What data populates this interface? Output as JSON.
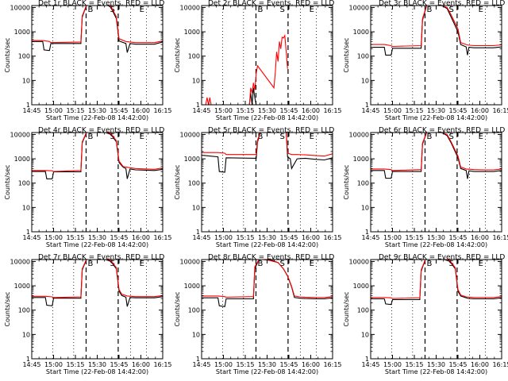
{
  "colors": {
    "events": "#000000",
    "lld": "#ff0000",
    "background": "#ffffff",
    "axes": "#000000"
  },
  "axis": {
    "xlabel": "Start Time (22-Feb-08 14:42:00)",
    "ylabel": "Counts/sec",
    "x_tick_labels": [
      "14:45",
      "15:00",
      "15:15",
      "15:30",
      "15:45",
      "16:00",
      "16:15"
    ],
    "y_tick_labels": [
      "1",
      "10",
      "100",
      "1000",
      "10000"
    ]
  },
  "chart_data": [
    {
      "type": "line",
      "title": "Det 1r BLACK = Events, RED = LLD",
      "markers": [
        "B",
        "S",
        "E"
      ],
      "xlabel": "Start Time (22-Feb-08 14:42:00)",
      "ylabel": "Counts/sec",
      "xlim": [
        0,
        96
      ],
      "ylim": [
        1,
        12000
      ],
      "yscale": "log",
      "series": [
        {
          "name": "Events",
          "color": "#000000",
          "x": [
            0,
            8,
            9,
            13,
            14,
            36,
            37,
            40,
            42,
            45,
            50,
            56,
            58,
            62,
            64,
            69,
            70,
            72,
            76,
            84,
            90,
            96
          ],
          "y": [
            400,
            400,
            180,
            170,
            330,
            330,
            4000,
            12000,
            12000,
            12000,
            12000,
            12000,
            10000,
            3500,
            420,
            330,
            140,
            330,
            310,
            310,
            310,
            380
          ]
        },
        {
          "name": "LLD",
          "color": "#ff0000",
          "x": [
            0,
            8,
            13,
            14,
            36,
            37,
            40,
            42,
            45,
            50,
            56,
            58,
            62,
            64,
            69,
            72,
            76,
            84,
            90,
            96
          ],
          "y": [
            440,
            440,
            400,
            360,
            380,
            4500,
            12000,
            12000,
            12000,
            12000,
            12000,
            11000,
            4200,
            520,
            400,
            380,
            360,
            360,
            360,
            420
          ]
        }
      ]
    },
    {
      "type": "line",
      "title": "Det 2r BLACK = Events, RED = LLD",
      "markers": [
        "B",
        "S",
        "E"
      ],
      "xlabel": "Start Time (22-Feb-08 14:42:00)",
      "ylabel": "Counts/sec",
      "xlim": [
        0,
        96
      ],
      "ylim": [
        1,
        12000
      ],
      "yscale": "log",
      "series": [
        {
          "name": "Events",
          "color": "#000000",
          "x": [
            35,
            36,
            37,
            38,
            39,
            40
          ],
          "y": [
            1,
            3,
            1,
            5,
            2,
            1
          ]
        },
        {
          "name": "LLD",
          "color": "#ff0000",
          "x": [
            3,
            4,
            5,
            6,
            7,
            8,
            35,
            36,
            37,
            38,
            39,
            40,
            41,
            53,
            54,
            55,
            56,
            57,
            58,
            59,
            60,
            61,
            62,
            63
          ],
          "y": [
            1,
            2,
            1,
            2,
            1,
            1,
            1,
            5,
            3,
            8,
            4,
            20,
            40,
            5,
            20,
            150,
            60,
            400,
            200,
            600,
            550,
            700,
            150,
            30
          ]
        }
      ]
    },
    {
      "type": "line",
      "title": "Det 3r BLACK = Events, RED = LLD",
      "markers": [
        "B",
        "S",
        "E"
      ],
      "xlabel": "Start Time (22-Feb-08 14:42:00)",
      "ylabel": "Counts/sec",
      "xlim": [
        0,
        96
      ],
      "ylim": [
        1,
        12000
      ],
      "yscale": "log",
      "series": [
        {
          "name": "Events",
          "color": "#000000",
          "x": [
            0,
            10,
            11,
            15,
            16,
            37,
            38,
            41,
            43,
            48,
            52,
            56,
            59,
            64,
            66,
            70,
            71,
            72,
            76,
            84,
            90,
            96
          ],
          "y": [
            230,
            230,
            110,
            110,
            210,
            210,
            3000,
            12000,
            12000,
            12000,
            12000,
            9000,
            4000,
            1000,
            300,
            240,
            110,
            230,
            220,
            220,
            220,
            240
          ]
        },
        {
          "name": "LLD",
          "color": "#ff0000",
          "x": [
            0,
            10,
            15,
            16,
            37,
            38,
            41,
            43,
            48,
            52,
            56,
            59,
            64,
            66,
            70,
            72,
            76,
            84,
            90,
            96
          ],
          "y": [
            300,
            300,
            270,
            250,
            270,
            3500,
            12000,
            12000,
            12000,
            12000,
            10000,
            5000,
            1300,
            360,
            300,
            280,
            270,
            270,
            270,
            290
          ]
        }
      ]
    },
    {
      "type": "line",
      "title": "Det 4r BLACK = Events, RED = LLD",
      "markers": [
        "B",
        "S",
        "E"
      ],
      "xlabel": "Start Time (22-Feb-08 14:42:00)",
      "ylabel": "Counts/sec",
      "xlim": [
        0,
        96
      ],
      "ylim": [
        1,
        12000
      ],
      "yscale": "log",
      "series": [
        {
          "name": "Events",
          "color": "#000000",
          "x": [
            0,
            10,
            11,
            15,
            16,
            36,
            37,
            40,
            44,
            50,
            54,
            58,
            62,
            64,
            67,
            69,
            70,
            72,
            76,
            84,
            90,
            96
          ],
          "y": [
            300,
            300,
            150,
            150,
            290,
            290,
            4500,
            12000,
            12000,
            12000,
            12000,
            10000,
            5000,
            700,
            450,
            400,
            150,
            380,
            350,
            340,
            330,
            370
          ]
        },
        {
          "name": "LLD",
          "color": "#ff0000",
          "x": [
            0,
            10,
            15,
            16,
            36,
            37,
            40,
            44,
            50,
            54,
            58,
            62,
            64,
            67,
            72,
            76,
            84,
            90,
            96
          ],
          "y": [
            330,
            330,
            320,
            300,
            330,
            5000,
            12000,
            12000,
            12000,
            12000,
            11000,
            5500,
            800,
            480,
            430,
            400,
            380,
            370,
            420
          ]
        }
      ]
    },
    {
      "type": "line",
      "title": "Det 5r BLACK = Events, RED = LLD",
      "markers": [
        "B",
        "S",
        "E"
      ],
      "xlabel": "Start Time (22-Feb-08 14:42:00)",
      "ylabel": "Counts/sec",
      "xlim": [
        0,
        96
      ],
      "ylim": [
        1,
        12000
      ],
      "yscale": "log",
      "series": [
        {
          "name": "Events",
          "color": "#000000",
          "x": [
            0,
            12,
            13,
            17,
            18,
            40,
            41,
            43,
            46,
            52,
            58,
            62,
            63,
            65,
            66,
            70,
            76,
            84,
            90,
            96
          ],
          "y": [
            1400,
            1200,
            300,
            280,
            1100,
            1050,
            5000,
            12000,
            12000,
            12000,
            12000,
            12000,
            1200,
            1000,
            400,
            1000,
            1050,
            950,
            900,
            1100
          ]
        },
        {
          "name": "LLD",
          "color": "#ff0000",
          "x": [
            0,
            12,
            17,
            18,
            40,
            41,
            43,
            46,
            52,
            58,
            62,
            63,
            66,
            70,
            76,
            84,
            90,
            96
          ],
          "y": [
            1800,
            1800,
            1700,
            1500,
            1500,
            6000,
            12000,
            12000,
            12000,
            12000,
            12000,
            1700,
            1500,
            1500,
            1450,
            1350,
            1300,
            1600
          ]
        }
      ]
    },
    {
      "type": "line",
      "title": "Det 6r BLACK = Events, RED = LLD",
      "markers": [
        "B",
        "S",
        "E"
      ],
      "xlabel": "Start Time (22-Feb-08 14:42:00)",
      "ylabel": "Counts/sec",
      "xlim": [
        0,
        96
      ],
      "ylim": [
        1,
        12000
      ],
      "yscale": "log",
      "series": [
        {
          "name": "Events",
          "color": "#000000",
          "x": [
            0,
            10,
            11,
            15,
            16,
            37,
            38,
            41,
            44,
            48,
            52,
            56,
            59,
            64,
            66,
            70,
            71,
            72,
            76,
            84,
            90,
            96
          ],
          "y": [
            330,
            330,
            160,
            160,
            300,
            300,
            4000,
            12000,
            12000,
            12000,
            12000,
            9000,
            4500,
            1100,
            400,
            330,
            150,
            320,
            300,
            300,
            300,
            330
          ]
        },
        {
          "name": "LLD",
          "color": "#ff0000",
          "x": [
            0,
            10,
            15,
            16,
            37,
            38,
            41,
            44,
            48,
            52,
            56,
            59,
            64,
            66,
            70,
            76,
            84,
            90,
            96
          ],
          "y": [
            380,
            380,
            360,
            330,
            360,
            4500,
            12000,
            12000,
            12000,
            12000,
            10000,
            5000,
            1300,
            460,
            380,
            360,
            350,
            350,
            380
          ]
        }
      ]
    },
    {
      "type": "line",
      "title": "Det 7r BLACK = Events, RED = LLD",
      "markers": [
        "B",
        "S",
        "E"
      ],
      "xlabel": "Start Time (22-Feb-08 14:42:00)",
      "ylabel": "Counts/sec",
      "xlim": [
        0,
        96
      ],
      "ylim": [
        1,
        12000
      ],
      "yscale": "log",
      "series": [
        {
          "name": "Events",
          "color": "#000000",
          "x": [
            0,
            10,
            11,
            15,
            16,
            36,
            37,
            40,
            44,
            50,
            54,
            58,
            62,
            64,
            66,
            69,
            70,
            72,
            76,
            84,
            90,
            96
          ],
          "y": [
            330,
            330,
            160,
            150,
            310,
            310,
            4500,
            12000,
            12000,
            12000,
            12000,
            10000,
            5000,
            600,
            400,
            340,
            140,
            330,
            320,
            320,
            320,
            360
          ]
        },
        {
          "name": "LLD",
          "color": "#ff0000",
          "x": [
            0,
            10,
            15,
            16,
            36,
            37,
            40,
            44,
            50,
            54,
            58,
            62,
            64,
            66,
            70,
            76,
            84,
            90,
            96
          ],
          "y": [
            370,
            370,
            350,
            330,
            350,
            5000,
            12000,
            12000,
            12000,
            12000,
            11000,
            5500,
            700,
            450,
            380,
            360,
            360,
            360,
            400
          ]
        }
      ]
    },
    {
      "type": "line",
      "title": "Det 8r BLACK = Events, RED = LLD",
      "markers": [
        "B",
        "S",
        "E"
      ],
      "xlabel": "Start Time (22-Feb-08 14:42:00)",
      "ylabel": "Counts/sec",
      "xlim": [
        0,
        96
      ],
      "ylim": [
        1,
        12000
      ],
      "yscale": "log",
      "series": [
        {
          "name": "Events",
          "color": "#000000",
          "x": [
            0,
            12,
            13,
            17,
            18,
            38,
            39,
            42,
            45,
            50,
            56,
            60,
            63,
            66,
            68,
            72,
            76,
            84,
            90,
            96
          ],
          "y": [
            320,
            320,
            150,
            140,
            290,
            290,
            5000,
            12000,
            12000,
            12000,
            9000,
            5000,
            2500,
            900,
            330,
            310,
            300,
            290,
            290,
            320
          ]
        },
        {
          "name": "LLD",
          "color": "#ff0000",
          "x": [
            0,
            12,
            17,
            18,
            38,
            39,
            42,
            45,
            50,
            56,
            60,
            63,
            66,
            68,
            72,
            76,
            84,
            90,
            96
          ],
          "y": [
            380,
            380,
            360,
            340,
            360,
            6000,
            12000,
            12000,
            11000,
            9000,
            5000,
            2600,
            950,
            380,
            350,
            340,
            330,
            330,
            360
          ]
        }
      ]
    },
    {
      "type": "line",
      "title": "Det 9r BLACK = Events, RED = LLD",
      "markers": [
        "B",
        "S",
        "E"
      ],
      "xlabel": "Start Time (22-Feb-08 14:42:00)",
      "ylabel": "Counts/sec",
      "xlim": [
        0,
        96
      ],
      "ylim": [
        1,
        12000
      ],
      "yscale": "log",
      "series": [
        {
          "name": "Events",
          "color": "#000000",
          "x": [
            0,
            10,
            11,
            15,
            16,
            36,
            37,
            40,
            44,
            50,
            54,
            58,
            62,
            64,
            66,
            70,
            72,
            76,
            84,
            90,
            96
          ],
          "y": [
            290,
            290,
            180,
            170,
            270,
            270,
            4000,
            12000,
            12000,
            12000,
            12000,
            10000,
            5000,
            600,
            380,
            320,
            300,
            290,
            290,
            290,
            320
          ]
        },
        {
          "name": "LLD",
          "color": "#ff0000",
          "x": [
            0,
            10,
            15,
            16,
            36,
            37,
            40,
            44,
            50,
            54,
            58,
            62,
            64,
            66,
            70,
            76,
            84,
            90,
            96
          ],
          "y": [
            330,
            330,
            320,
            300,
            320,
            4500,
            12000,
            12000,
            12000,
            12000,
            11000,
            5500,
            700,
            420,
            350,
            330,
            330,
            330,
            360
          ]
        }
      ]
    }
  ]
}
